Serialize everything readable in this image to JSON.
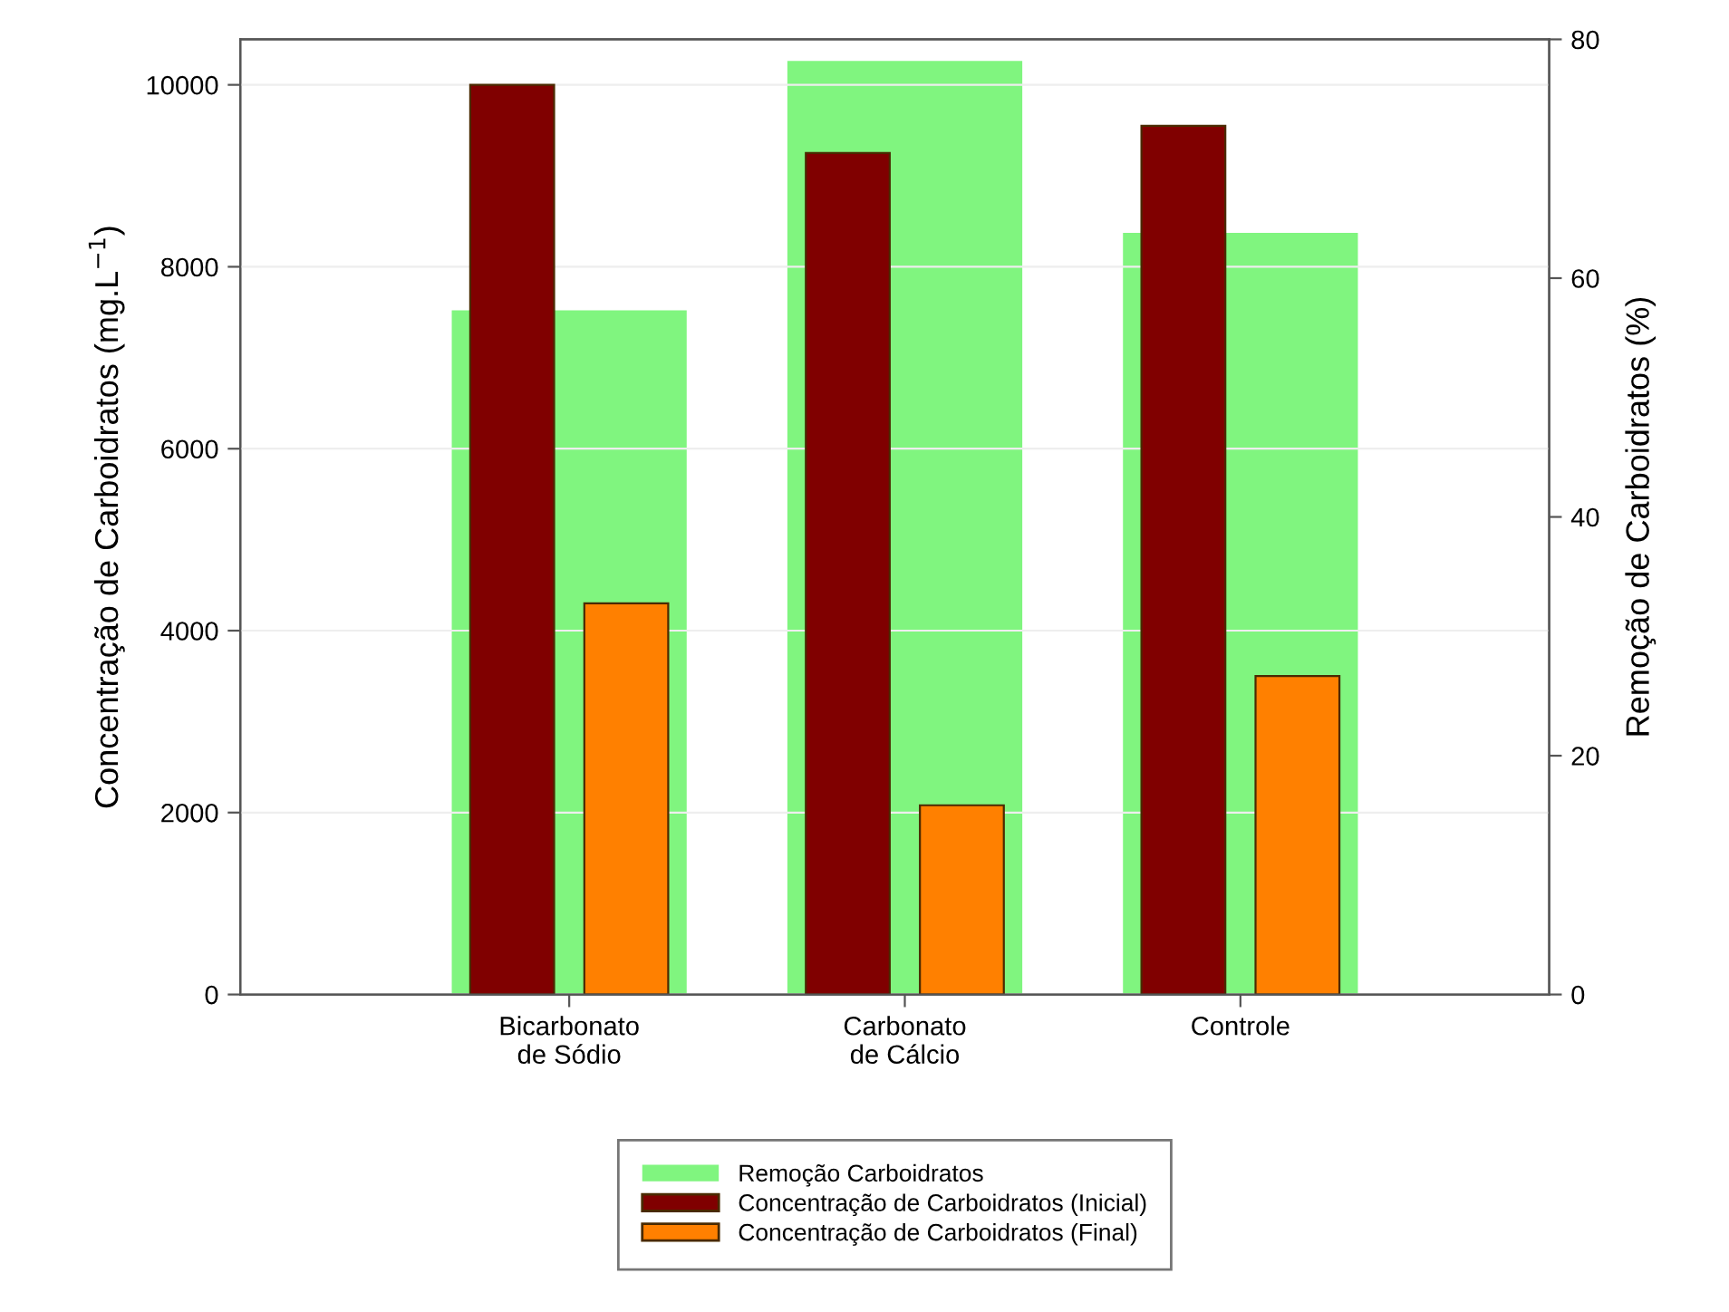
{
  "chart_data": {
    "type": "bar",
    "ylabel": "Concentração de Carboidratos (mg.L$^{−1}$)",
    "y2label": "Remoção de Carboidratos (%)",
    "categories": [
      "Bicarbonato\nde Sódio",
      "Carbonato\nde Cálcio",
      "Controle"
    ],
    "series": [
      {
        "name": "Remoção Carboidratos",
        "color": "#80f57f",
        "axis": "y2",
        "values": [
          57.3,
          78.2,
          63.8
        ]
      },
      {
        "name": "Concentração de Carboidratos (Inicial)",
        "color": "#800000",
        "values": [
          10000,
          9250,
          9550
        ]
      },
      {
        "name": "Concentração de Carboidratos (Final)",
        "color": "#ff8000",
        "values": [
          4300,
          2080,
          3500
        ]
      }
    ],
    "ylim": [
      0,
      10500
    ],
    "yticks": [
      0,
      2000,
      4000,
      6000,
      8000,
      10000
    ],
    "y2lim": [
      0,
      80
    ],
    "y2ticks": [
      0,
      20,
      40,
      60,
      80
    ],
    "grid": "y",
    "legend": "bottom"
  }
}
